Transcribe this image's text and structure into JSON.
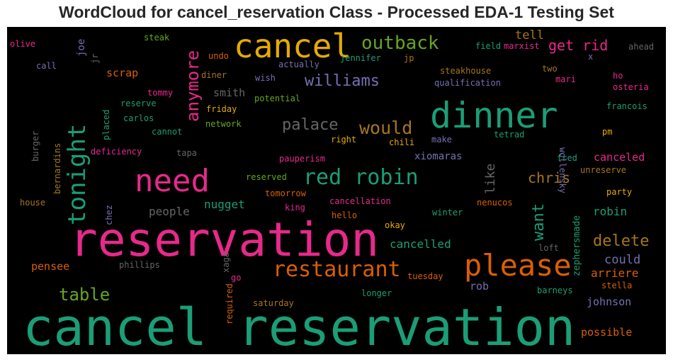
{
  "chart_data": {
    "type": "wordcloud",
    "title": "WordCloud for cancel_reservation Class - Processed EDA-1 Testing Set",
    "background": "#000000",
    "words": [
      {
        "text": "cancel reservation",
        "weight": 100,
        "color": "#1b9e77"
      },
      {
        "text": "reservation",
        "weight": 92,
        "color": "#e7298a"
      },
      {
        "text": "dinner",
        "weight": 68,
        "color": "#1b9e77"
      },
      {
        "text": "cancel",
        "weight": 62,
        "color": "#e6ab02"
      },
      {
        "text": "need",
        "weight": 60,
        "color": "#e7298a"
      },
      {
        "text": "please",
        "weight": 58,
        "color": "#d95f02"
      },
      {
        "text": "tonight",
        "weight": 46,
        "color": "#1b9e77"
      },
      {
        "text": "restaurant",
        "weight": 42,
        "color": "#d95f02"
      },
      {
        "text": "red robin",
        "weight": 42,
        "color": "#1b9e77"
      },
      {
        "text": "outback",
        "weight": 36,
        "color": "#66a61e"
      },
      {
        "text": "would",
        "weight": 34,
        "color": "#a6761d"
      },
      {
        "text": "table",
        "weight": 32,
        "color": "#66a61e"
      },
      {
        "text": "anymore",
        "weight": 32,
        "color": "#e7298a"
      },
      {
        "text": "williams",
        "weight": 30,
        "color": "#7570b3"
      },
      {
        "text": "want",
        "weight": 30,
        "color": "#1b9e77"
      },
      {
        "text": "palace",
        "weight": 28,
        "color": "#666666"
      },
      {
        "text": "delete",
        "weight": 28,
        "color": "#a6761d"
      },
      {
        "text": "get rid",
        "weight": 26,
        "color": "#e7298a"
      },
      {
        "text": "chris",
        "weight": 26,
        "color": "#a6761d"
      },
      {
        "text": "like",
        "weight": 24,
        "color": "#666666"
      },
      {
        "text": "could",
        "weight": 22,
        "color": "#7570b3"
      },
      {
        "text": "tell",
        "weight": 22,
        "color": "#a6761d"
      },
      {
        "text": "people",
        "weight": 20,
        "color": "#666666"
      },
      {
        "text": "nugget",
        "weight": 20,
        "color": "#1b9e77"
      },
      {
        "text": "robin",
        "weight": 20,
        "color": "#1b9e77"
      },
      {
        "text": "cancelled",
        "weight": 20,
        "color": "#1b9e77"
      },
      {
        "text": "arriere",
        "weight": 20,
        "color": "#d95f02"
      },
      {
        "text": "smith",
        "weight": 18,
        "color": "#666666"
      },
      {
        "text": "scrap",
        "weight": 18,
        "color": "#d95f02"
      },
      {
        "text": "canceled",
        "weight": 18,
        "color": "#e7298a"
      },
      {
        "text": "johnson",
        "weight": 18,
        "color": "#7570b3"
      },
      {
        "text": "possible",
        "weight": 18,
        "color": "#d95f02"
      },
      {
        "text": "rob",
        "weight": 18,
        "color": "#7570b3"
      },
      {
        "text": "pensee",
        "weight": 18,
        "color": "#d95f02"
      },
      {
        "text": "xiomaras",
        "weight": 16,
        "color": "#7570b3"
      },
      {
        "text": "joe",
        "weight": 16,
        "color": "#7570b3"
      },
      {
        "text": "zephersmade",
        "weight": 15,
        "color": "#1b9e77"
      },
      {
        "text": "steakhouse",
        "weight": 15,
        "color": "#a6761d"
      },
      {
        "text": "qualification",
        "weight": 15,
        "color": "#7570b3"
      },
      {
        "text": "wollensky",
        "weight": 15,
        "color": "#7570b3"
      },
      {
        "text": "field",
        "weight": 15,
        "color": "#1b9e77"
      },
      {
        "text": "marxist",
        "weight": 15,
        "color": "#e7298a"
      },
      {
        "text": "ahead",
        "weight": 15,
        "color": "#666666"
      },
      {
        "text": "olive",
        "weight": 15,
        "color": "#e7298a"
      },
      {
        "text": "steak",
        "weight": 15,
        "color": "#66a61e"
      },
      {
        "text": "undo",
        "weight": 15,
        "color": "#d95f02"
      },
      {
        "text": "jennifer",
        "weight": 15,
        "color": "#1b9e77"
      },
      {
        "text": "jp",
        "weight": 15,
        "color": "#a6761d"
      },
      {
        "text": "call",
        "weight": 15,
        "color": "#7570b3"
      },
      {
        "text": "jr",
        "weight": 15,
        "color": "#666666"
      },
      {
        "text": "diner",
        "weight": 15,
        "color": "#a6761d"
      },
      {
        "text": "wish",
        "weight": 15,
        "color": "#7570b3"
      },
      {
        "text": "actually",
        "weight": 15,
        "color": "#7570b3"
      },
      {
        "text": "two",
        "weight": 15,
        "color": "#a6761d"
      },
      {
        "text": "x",
        "weight": 15,
        "color": "#7570b3"
      },
      {
        "text": "mari",
        "weight": 15,
        "color": "#e7298a"
      },
      {
        "text": "ho",
        "weight": 15,
        "color": "#e7298a"
      },
      {
        "text": "osteria",
        "weight": 15,
        "color": "#e7298a"
      },
      {
        "text": "tommy",
        "weight": 15,
        "color": "#e7298a"
      },
      {
        "text": "reserve",
        "weight": 15,
        "color": "#1b9e77"
      },
      {
        "text": "potential",
        "weight": 15,
        "color": "#66a61e"
      },
      {
        "text": "francois",
        "weight": 15,
        "color": "#1b9e77"
      },
      {
        "text": "friday",
        "weight": 15,
        "color": "#e6ab02"
      },
      {
        "text": "carlos",
        "weight": 15,
        "color": "#1b9e77"
      },
      {
        "text": "placed",
        "weight": 15,
        "color": "#1b9e77"
      },
      {
        "text": "network",
        "weight": 15,
        "color": "#66a61e"
      },
      {
        "text": "tetrad",
        "weight": 15,
        "color": "#1b9e77"
      },
      {
        "text": "burger",
        "weight": 15,
        "color": "#666666"
      },
      {
        "text": "cannot",
        "weight": 15,
        "color": "#1b9e77"
      },
      {
        "text": "pm",
        "weight": 15,
        "color": "#e6ab02"
      },
      {
        "text": "make",
        "weight": 15,
        "color": "#7570b3"
      },
      {
        "text": "bernardins",
        "weight": 15,
        "color": "#a6761d"
      },
      {
        "text": "deficiency",
        "weight": 15,
        "color": "#e7298a"
      },
      {
        "text": "right",
        "weight": 15,
        "color": "#e6ab02"
      },
      {
        "text": "chili",
        "weight": 15,
        "color": "#e6ab02"
      },
      {
        "text": "tapa",
        "weight": 15,
        "color": "#666666"
      },
      {
        "text": "fred",
        "weight": 15,
        "color": "#1b9e77"
      },
      {
        "text": "pauperism",
        "weight": 15,
        "color": "#e7298a"
      },
      {
        "text": "unreserve",
        "weight": 15,
        "color": "#a6761d"
      },
      {
        "text": "reserved",
        "weight": 15,
        "color": "#66a61e"
      },
      {
        "text": "chez",
        "weight": 15,
        "color": "#7570b3"
      },
      {
        "text": "tomorrow",
        "weight": 15,
        "color": "#d95f02"
      },
      {
        "text": "party",
        "weight": 15,
        "color": "#e6ab02"
      },
      {
        "text": "house",
        "weight": 15,
        "color": "#a6761d"
      },
      {
        "text": "cancellation",
        "weight": 15,
        "color": "#e7298a"
      },
      {
        "text": "nenucos",
        "weight": 15,
        "color": "#d95f02"
      },
      {
        "text": "king",
        "weight": 15,
        "color": "#e7298a"
      },
      {
        "text": "hello",
        "weight": 15,
        "color": "#d95f02"
      },
      {
        "text": "winter",
        "weight": 15,
        "color": "#1b9e77"
      },
      {
        "text": "okay",
        "weight": 15,
        "color": "#e6ab02"
      },
      {
        "text": "loft",
        "weight": 15,
        "color": "#666666"
      },
      {
        "text": "xaga",
        "weight": 15,
        "color": "#666666"
      },
      {
        "text": "phillips",
        "weight": 15,
        "color": "#666666"
      },
      {
        "text": "go",
        "weight": 15,
        "color": "#e7298a"
      },
      {
        "text": "tuesday",
        "weight": 15,
        "color": "#d95f02"
      },
      {
        "text": "required",
        "weight": 15,
        "color": "#d95f02"
      },
      {
        "text": "longer",
        "weight": 15,
        "color": "#1b9e77"
      },
      {
        "text": "barneys",
        "weight": 15,
        "color": "#1b9e77"
      },
      {
        "text": "stella",
        "weight": 15,
        "color": "#d95f02"
      },
      {
        "text": "saturday",
        "weight": 15,
        "color": "#a6761d"
      }
    ]
  }
}
